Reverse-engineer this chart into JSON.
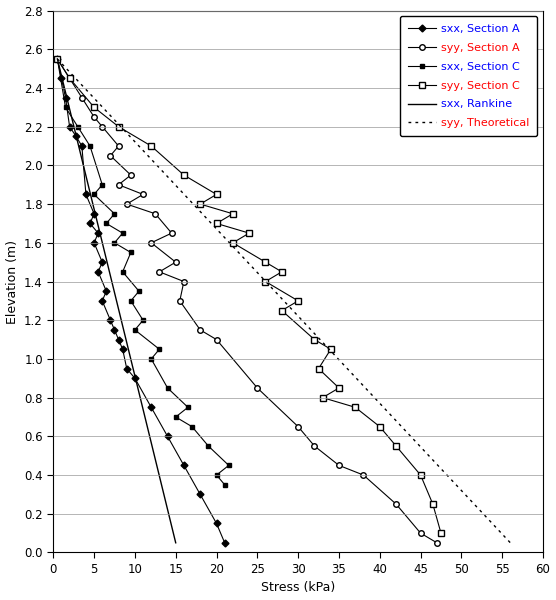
{
  "title": "",
  "xlabel": "Stress (kPa)",
  "ylabel": "Elevation (m)",
  "xlim": [
    0,
    60
  ],
  "ylim": [
    0,
    2.8
  ],
  "xticks": [
    0,
    5,
    10,
    15,
    20,
    25,
    30,
    35,
    40,
    45,
    50,
    55,
    60
  ],
  "yticks": [
    0,
    0.2,
    0.4,
    0.6,
    0.8,
    1.0,
    1.2,
    1.4,
    1.6,
    1.8,
    2.0,
    2.2,
    2.4,
    2.6,
    2.8
  ],
  "sxx_A_stress": [
    0.5,
    1.0,
    1.5,
    2.0,
    2.8,
    3.5,
    4.0,
    5.0,
    4.5,
    5.5,
    5.0,
    6.0,
    5.5,
    6.5,
    6.0,
    7.0,
    7.5,
    8.0,
    8.5,
    9.0,
    10.0,
    12.0,
    14.0,
    16.0,
    18.0,
    20.0,
    21.0
  ],
  "sxx_A_elev": [
    2.55,
    2.45,
    2.35,
    2.2,
    2.15,
    2.1,
    1.85,
    1.75,
    1.7,
    1.65,
    1.6,
    1.5,
    1.45,
    1.35,
    1.3,
    1.2,
    1.15,
    1.1,
    1.05,
    0.95,
    0.9,
    0.75,
    0.6,
    0.45,
    0.3,
    0.15,
    0.05
  ],
  "syy_A_stress": [
    0.5,
    2.0,
    3.5,
    5.0,
    6.0,
    8.0,
    7.0,
    9.5,
    8.0,
    11.0,
    9.0,
    12.5,
    14.5,
    12.0,
    15.0,
    13.0,
    16.0,
    15.5,
    18.0,
    20.0,
    25.0,
    30.0,
    32.0,
    35.0,
    38.0,
    42.0,
    45.0,
    47.0
  ],
  "syy_A_elev": [
    2.55,
    2.45,
    2.35,
    2.25,
    2.2,
    2.1,
    2.05,
    1.95,
    1.9,
    1.85,
    1.8,
    1.75,
    1.65,
    1.6,
    1.5,
    1.45,
    1.4,
    1.3,
    1.15,
    1.1,
    0.85,
    0.65,
    0.55,
    0.45,
    0.4,
    0.25,
    0.1,
    0.05
  ],
  "sxx_C_stress": [
    0.5,
    1.5,
    3.0,
    4.5,
    6.0,
    5.0,
    7.5,
    6.5,
    8.5,
    7.5,
    9.5,
    8.5,
    10.5,
    9.5,
    11.0,
    10.0,
    13.0,
    12.0,
    14.0,
    16.5,
    15.0,
    17.0,
    19.0,
    21.5,
    20.0,
    21.0
  ],
  "sxx_C_elev": [
    2.55,
    2.3,
    2.2,
    2.1,
    1.9,
    1.85,
    1.75,
    1.7,
    1.65,
    1.6,
    1.55,
    1.45,
    1.35,
    1.3,
    1.2,
    1.15,
    1.05,
    1.0,
    0.85,
    0.75,
    0.7,
    0.65,
    0.55,
    0.45,
    0.4,
    0.35
  ],
  "syy_C_stress": [
    0.5,
    2.0,
    5.0,
    8.0,
    12.0,
    16.0,
    20.0,
    18.0,
    22.0,
    20.0,
    24.0,
    22.0,
    26.0,
    28.0,
    26.0,
    30.0,
    28.0,
    32.0,
    34.0,
    32.5,
    35.0,
    33.0,
    37.0,
    40.0,
    42.0,
    45.0,
    46.5,
    47.5
  ],
  "syy_C_elev": [
    2.55,
    2.45,
    2.3,
    2.2,
    2.1,
    1.95,
    1.85,
    1.8,
    1.75,
    1.7,
    1.65,
    1.6,
    1.5,
    1.45,
    1.4,
    1.3,
    1.25,
    1.1,
    1.05,
    0.95,
    0.85,
    0.8,
    0.75,
    0.65,
    0.55,
    0.4,
    0.25,
    0.1
  ],
  "sxx_rankine_stress": [
    0.5,
    15.0
  ],
  "sxx_rankine_elev": [
    2.55,
    0.05
  ],
  "syy_theoretical_stress": [
    0.5,
    56.0
  ],
  "syy_theoretical_elev": [
    2.55,
    0.05
  ],
  "legend_labels": [
    "sxx, Section A",
    "syy, Section A",
    "sxx, Section C",
    "syy, Section C",
    "sxx, Rankine",
    "syy, Theoretical"
  ],
  "legend_text_colors": [
    "#0000ff",
    "#ff0000",
    "#0000ff",
    "#ff0000",
    "#0000ff",
    "#ff0000"
  ]
}
